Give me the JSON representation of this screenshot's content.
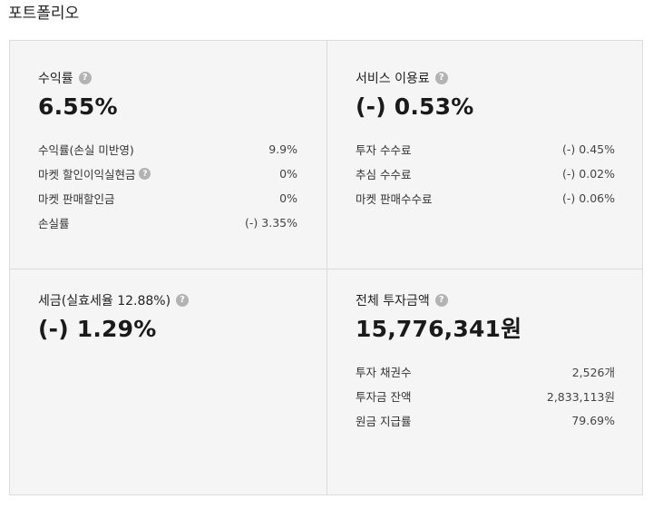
{
  "page": {
    "title": "포트폴리오"
  },
  "cards": [
    {
      "label": "수익률",
      "value": "6.55%",
      "rows": [
        {
          "label": "수익률(손실 미반영)",
          "value": "9.9%"
        },
        {
          "label": "마켓 할인이익실현금",
          "value": "0%"
        },
        {
          "label": "마켓 판매할인금",
          "value": "0%"
        },
        {
          "label": "손실률",
          "value": "(-) 3.35%"
        }
      ]
    },
    {
      "label": "서비스 이용료",
      "value": "(-) 0.53%",
      "rows": [
        {
          "label": "투자 수수료",
          "value": "(-) 0.45%"
        },
        {
          "label": "추심 수수료",
          "value": "(-) 0.02%"
        },
        {
          "label": "마켓 판매수수료",
          "value": "(-) 0.06%"
        }
      ]
    },
    {
      "label": "세금(실효세율 12.88%)",
      "value": "(-) 1.29%",
      "rows": []
    },
    {
      "label": "전체 투자금액",
      "value": "15,776,341원",
      "rows": [
        {
          "label": "투자 채권수",
          "value": "2,526개"
        },
        {
          "label": "투자금 잔액",
          "value": "2,833,113원"
        },
        {
          "label": "원금 지급률",
          "value": "79.69%"
        }
      ]
    }
  ],
  "icons": {
    "help": "?"
  }
}
